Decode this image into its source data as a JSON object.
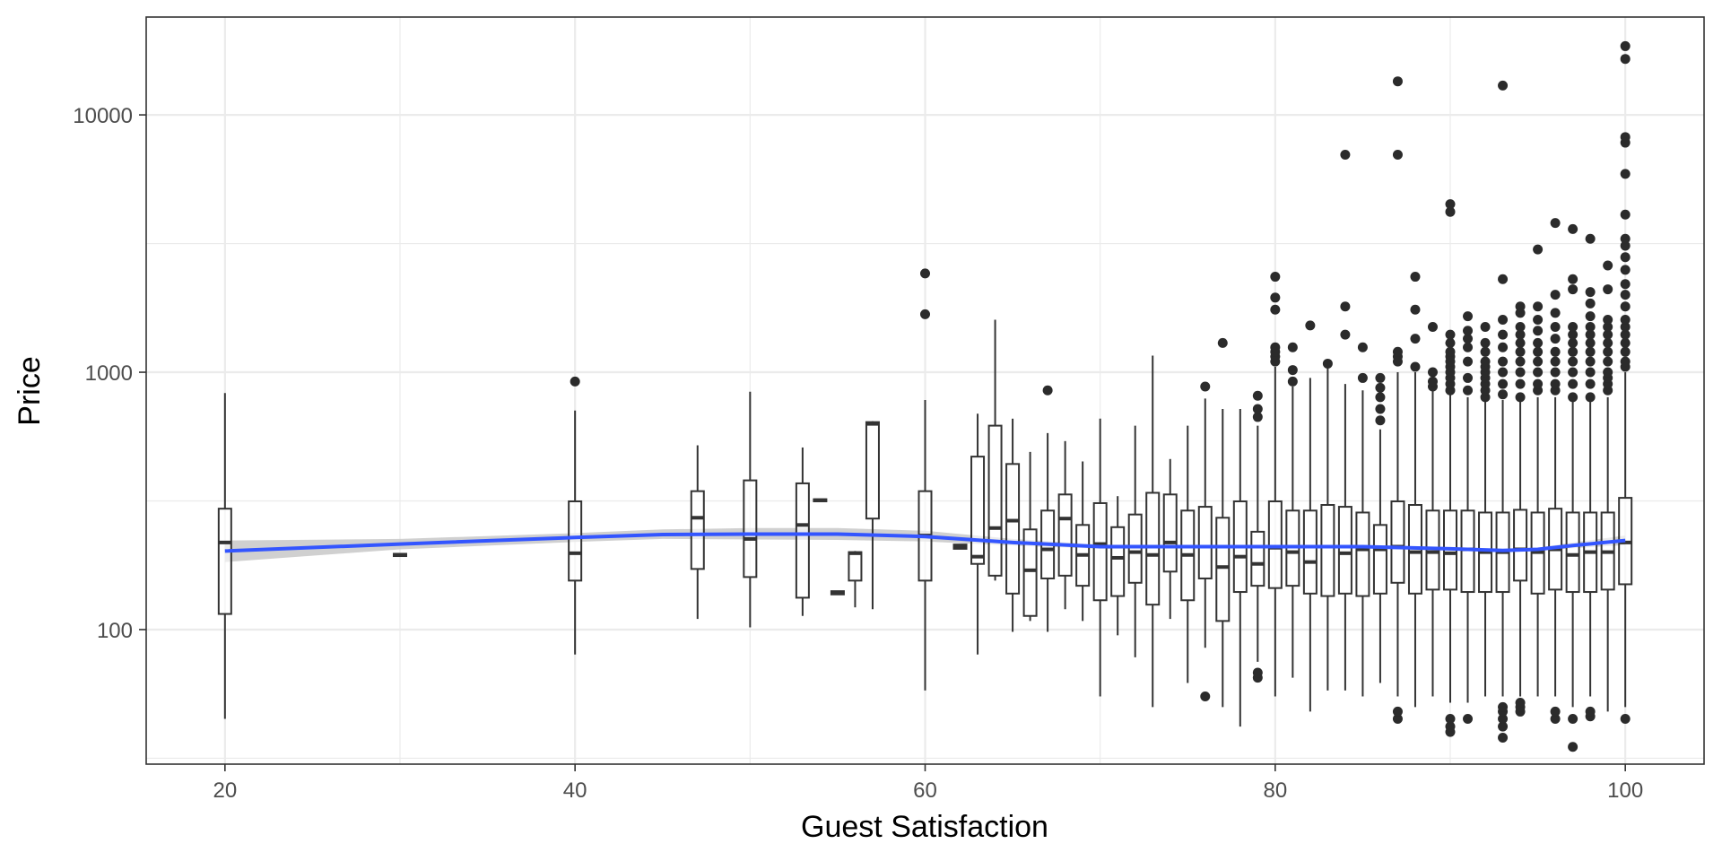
{
  "chart_data": {
    "type": "boxplot",
    "xlabel": "Guest Satisfaction",
    "ylabel": "Price",
    "x_scale": "linear",
    "y_scale": "log10",
    "xlim": [
      15.5,
      104.5
    ],
    "ylim": [
      30,
      24000
    ],
    "x_ticks": [
      20,
      40,
      60,
      80,
      100
    ],
    "x_tick_labels": [
      "20",
      "40",
      "60",
      "80",
      "100"
    ],
    "y_ticks": [
      100,
      1000,
      10000
    ],
    "y_tick_labels": [
      "100",
      "1000",
      "10000"
    ],
    "grid": true,
    "legend": "none",
    "colors": {
      "box_stroke": "#333333",
      "median": "#333333",
      "outlier": "#2b2b2b",
      "smooth_line": "#3355ff",
      "confidence_band": "#c8c8c8",
      "grid": "#ebebeb",
      "panel_border": "#333333"
    },
    "boxes": [
      {
        "x": 20,
        "q1": 115,
        "median": 218,
        "q3": 295,
        "whisker_low": 45,
        "whisker_high": 830,
        "outliers": []
      },
      {
        "x": 30,
        "q1": 193,
        "median": 195,
        "q3": 197,
        "whisker_low": 193,
        "whisker_high": 197,
        "outliers": []
      },
      {
        "x": 40,
        "q1": 155,
        "median": 198,
        "q3": 315,
        "whisker_low": 80,
        "whisker_high": 710,
        "outliers": [
          920
        ]
      },
      {
        "x": 47,
        "q1": 172,
        "median": 272,
        "q3": 345,
        "whisker_low": 110,
        "whisker_high": 520,
        "outliers": []
      },
      {
        "x": 50,
        "q1": 160,
        "median": 225,
        "q3": 380,
        "whisker_low": 102,
        "whisker_high": 840,
        "outliers": []
      },
      {
        "x": 53,
        "q1": 133,
        "median": 255,
        "q3": 370,
        "whisker_low": 113,
        "whisker_high": 510,
        "outliers": []
      },
      {
        "x": 54,
        "q1": 315,
        "median": 318,
        "q3": 321,
        "whisker_low": 315,
        "whisker_high": 321,
        "outliers": []
      },
      {
        "x": 55,
        "q1": 137,
        "median": 139,
        "q3": 141,
        "whisker_low": 137,
        "whisker_high": 141,
        "outliers": []
      },
      {
        "x": 56,
        "q1": 155,
        "median": 198,
        "q3": 200,
        "whisker_low": 122,
        "whisker_high": 202,
        "outliers": []
      },
      {
        "x": 57,
        "q1": 270,
        "median": 630,
        "q3": 640,
        "whisker_low": 120,
        "whisker_high": 645,
        "outliers": []
      },
      {
        "x": 60,
        "q1": 155,
        "median": 232,
        "q3": 345,
        "whisker_low": 58,
        "whisker_high": 780,
        "outliers": [
          1680,
          2420
        ]
      },
      {
        "x": 62,
        "q1": 206,
        "median": 210,
        "q3": 214,
        "whisker_low": 206,
        "whisker_high": 214,
        "outliers": []
      },
      {
        "x": 63,
        "q1": 180,
        "median": 192,
        "q3": 470,
        "whisker_low": 80,
        "whisker_high": 690,
        "outliers": []
      },
      {
        "x": 64,
        "q1": 162,
        "median": 248,
        "q3": 620,
        "whisker_low": 155,
        "whisker_high": 1600,
        "outliers": []
      },
      {
        "x": 65,
        "q1": 138,
        "median": 265,
        "q3": 440,
        "whisker_low": 98,
        "whisker_high": 660,
        "outliers": []
      },
      {
        "x": 66,
        "q1": 113,
        "median": 170,
        "q3": 245,
        "whisker_low": 108,
        "whisker_high": 490,
        "outliers": []
      },
      {
        "x": 67,
        "q1": 158,
        "median": 205,
        "q3": 290,
        "whisker_low": 98,
        "whisker_high": 580,
        "outliers": [
          850
        ]
      },
      {
        "x": 68,
        "q1": 162,
        "median": 270,
        "q3": 335,
        "whisker_low": 120,
        "whisker_high": 540,
        "outliers": []
      },
      {
        "x": 69,
        "q1": 148,
        "median": 195,
        "q3": 255,
        "whisker_low": 108,
        "whisker_high": 450,
        "outliers": []
      },
      {
        "x": 70,
        "q1": 130,
        "median": 215,
        "q3": 310,
        "whisker_low": 55,
        "whisker_high": 660,
        "outliers": []
      },
      {
        "x": 71,
        "q1": 135,
        "median": 190,
        "q3": 250,
        "whisker_low": 95,
        "whisker_high": 330,
        "outliers": []
      },
      {
        "x": 72,
        "q1": 152,
        "median": 200,
        "q3": 280,
        "whisker_low": 78,
        "whisker_high": 620,
        "outliers": []
      },
      {
        "x": 73,
        "q1": 125,
        "median": 195,
        "q3": 340,
        "whisker_low": 50,
        "whisker_high": 1160,
        "outliers": []
      },
      {
        "x": 74,
        "q1": 168,
        "median": 218,
        "q3": 335,
        "whisker_low": 110,
        "whisker_high": 460,
        "outliers": []
      },
      {
        "x": 75,
        "q1": 130,
        "median": 195,
        "q3": 290,
        "whisker_low": 62,
        "whisker_high": 620,
        "outliers": []
      },
      {
        "x": 76,
        "q1": 158,
        "median": 210,
        "q3": 300,
        "whisker_low": 85,
        "whisker_high": 790,
        "outliers": [
          55,
          880
        ]
      },
      {
        "x": 77,
        "q1": 108,
        "median": 175,
        "q3": 272,
        "whisker_low": 50,
        "whisker_high": 720,
        "outliers": [
          1300
        ]
      },
      {
        "x": 78,
        "q1": 140,
        "median": 192,
        "q3": 315,
        "whisker_low": 42,
        "whisker_high": 720,
        "outliers": []
      },
      {
        "x": 79,
        "q1": 148,
        "median": 180,
        "q3": 240,
        "whisker_low": 75,
        "whisker_high": 620,
        "outliers": [
          65,
          68,
          670,
          720,
          810
        ]
      },
      {
        "x": 80,
        "q1": 145,
        "median": 208,
        "q3": 315,
        "whisker_low": 55,
        "whisker_high": 1050,
        "outliers": [
          1100,
          1150,
          1200,
          1250,
          1750,
          1950,
          2350
        ]
      },
      {
        "x": 81,
        "q1": 148,
        "median": 200,
        "q3": 290,
        "whisker_low": 65,
        "whisker_high": 880,
        "outliers": [
          920,
          1020,
          1250
        ]
      },
      {
        "x": 82,
        "q1": 138,
        "median": 183,
        "q3": 290,
        "whisker_low": 48,
        "whisker_high": 950,
        "outliers": [
          1520
        ]
      },
      {
        "x": 83,
        "q1": 135,
        "median": 210,
        "q3": 305,
        "whisker_low": 58,
        "whisker_high": 1050,
        "outliers": [
          1080
        ]
      },
      {
        "x": 84,
        "q1": 138,
        "median": 198,
        "q3": 300,
        "whisker_low": 58,
        "whisker_high": 900,
        "outliers": [
          1400,
          1800,
          7000
        ]
      },
      {
        "x": 85,
        "q1": 135,
        "median": 205,
        "q3": 285,
        "whisker_low": 55,
        "whisker_high": 850,
        "outliers": [
          950,
          1250
        ]
      },
      {
        "x": 86,
        "q1": 138,
        "median": 205,
        "q3": 255,
        "whisker_low": 62,
        "whisker_high": 600,
        "outliers": [
          650,
          720,
          800,
          870,
          950
        ]
      },
      {
        "x": 87,
        "q1": 152,
        "median": 210,
        "q3": 315,
        "whisker_low": 55,
        "whisker_high": 1000,
        "outliers": [
          45,
          48,
          1100,
          1150,
          1200,
          7000,
          13500
        ]
      },
      {
        "x": 88,
        "q1": 138,
        "median": 200,
        "q3": 305,
        "whisker_low": 50,
        "whisker_high": 1000,
        "outliers": [
          1050,
          1350,
          1750,
          2350
        ]
      },
      {
        "x": 89,
        "q1": 143,
        "median": 200,
        "q3": 290,
        "whisker_low": 55,
        "whisker_high": 850,
        "outliers": [
          880,
          920,
          1000,
          1500
        ]
      },
      {
        "x": 90,
        "q1": 143,
        "median": 198,
        "q3": 290,
        "whisker_low": 52,
        "whisker_high": 820,
        "outliers": [
          40,
          42,
          45,
          850,
          900,
          950,
          1000,
          1050,
          1100,
          1150,
          1200,
          1300,
          1400,
          4200,
          4500
        ]
      },
      {
        "x": 91,
        "q1": 140,
        "median": 205,
        "q3": 290,
        "whisker_low": 52,
        "whisker_high": 800,
        "outliers": [
          45,
          850,
          950,
          1100,
          1250,
          1350,
          1450,
          1650
        ]
      },
      {
        "x": 92,
        "q1": 140,
        "median": 200,
        "q3": 285,
        "whisker_low": 55,
        "whisker_high": 780,
        "outliers": [
          800,
          850,
          900,
          950,
          1000,
          1050,
          1100,
          1200,
          1300,
          1500
        ]
      },
      {
        "x": 93,
        "q1": 140,
        "median": 200,
        "q3": 285,
        "whisker_low": 55,
        "whisker_high": 780,
        "outliers": [
          38,
          42,
          45,
          48,
          50,
          820,
          900,
          1000,
          1100,
          1250,
          1400,
          1600,
          2300,
          13000
        ]
      },
      {
        "x": 94,
        "q1": 155,
        "median": 205,
        "q3": 292,
        "whisker_low": 55,
        "whisker_high": 780,
        "outliers": [
          48,
          50,
          52,
          800,
          900,
          1000,
          1100,
          1200,
          1300,
          1400,
          1500,
          1700,
          1800
        ]
      },
      {
        "x": 95,
        "q1": 138,
        "median": 200,
        "q3": 285,
        "whisker_low": 55,
        "whisker_high": 800,
        "outliers": [
          850,
          900,
          1000,
          1100,
          1200,
          1300,
          1450,
          1600,
          1800,
          3000
        ]
      },
      {
        "x": 96,
        "q1": 143,
        "median": 205,
        "q3": 295,
        "whisker_low": 55,
        "whisker_high": 800,
        "outliers": [
          45,
          48,
          850,
          900,
          1000,
          1100,
          1200,
          1350,
          1500,
          1700,
          2000,
          3800
        ]
      },
      {
        "x": 97,
        "q1": 140,
        "median": 195,
        "q3": 285,
        "whisker_low": 50,
        "whisker_high": 780,
        "outliers": [
          35,
          45,
          800,
          900,
          1000,
          1100,
          1200,
          1300,
          1400,
          1500,
          2100,
          2300,
          3600
        ]
      },
      {
        "x": 98,
        "q1": 140,
        "median": 200,
        "q3": 285,
        "whisker_low": 55,
        "whisker_high": 780,
        "outliers": [
          46,
          48,
          800,
          900,
          1000,
          1100,
          1200,
          1300,
          1400,
          1500,
          1650,
          1850,
          2050,
          3300
        ]
      },
      {
        "x": 99,
        "q1": 143,
        "median": 200,
        "q3": 285,
        "whisker_low": 48,
        "whisker_high": 800,
        "outliers": [
          850,
          900,
          950,
          1000,
          1100,
          1200,
          1300,
          1400,
          1500,
          1600,
          2100,
          2600
        ]
      },
      {
        "x": 100,
        "q1": 150,
        "median": 218,
        "q3": 325,
        "whisker_low": 50,
        "whisker_high": 1000,
        "outliers": [
          45,
          1050,
          1100,
          1200,
          1300,
          1400,
          1500,
          1600,
          1800,
          2000,
          2200,
          2500,
          2800,
          3100,
          3300,
          4100,
          5900,
          7800,
          8200,
          16500,
          18500
        ]
      }
    ],
    "smooth": {
      "x": [
        20,
        30,
        40,
        45,
        50,
        55,
        60,
        65,
        70,
        75,
        80,
        85,
        90,
        93,
        95,
        97,
        100
      ],
      "y": [
        202,
        215,
        228,
        234,
        235,
        235,
        230,
        218,
        210,
        210,
        210,
        210,
        206,
        203,
        205,
        212,
        222
      ],
      "lower": [
        183,
        205,
        219,
        225,
        224,
        223,
        220,
        212,
        206,
        207,
        207,
        207,
        203,
        200,
        202,
        207,
        213
      ],
      "upper": [
        222,
        225,
        237,
        245,
        248,
        248,
        242,
        225,
        214,
        213,
        213,
        213,
        209,
        206,
        208,
        218,
        232
      ]
    }
  }
}
